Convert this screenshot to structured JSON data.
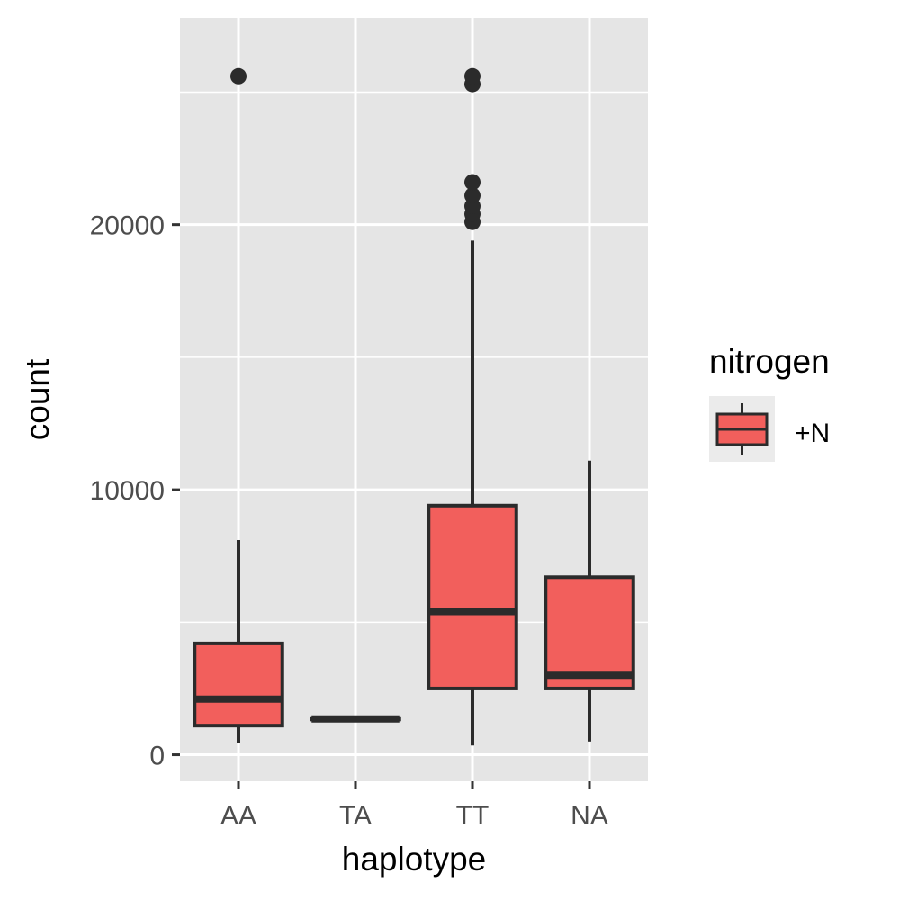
{
  "chart_data": {
    "type": "boxplot",
    "xlabel": "haplotype",
    "ylabel": "count",
    "categories": [
      "AA",
      "TA",
      "TT",
      "NA"
    ],
    "ylim": [
      -1000,
      27800
    ],
    "yticks": [
      0,
      10000,
      20000
    ],
    "ytick_labels": [
      "0",
      "10000",
      "20000"
    ],
    "y_minor_ticks": [
      5000,
      15000,
      25000
    ],
    "grid": true,
    "legend": {
      "title": "nitrogen",
      "position": "right",
      "entries": [
        {
          "label": "+N",
          "color": "#F25F5C"
        }
      ]
    },
    "series": [
      {
        "name": "+N",
        "color": "#F25F5C",
        "boxes": [
          {
            "category": "AA",
            "whisker_low": 450,
            "q1": 1100,
            "median": 2100,
            "q3": 4200,
            "whisker_high": 8100,
            "outliers": [
              25600
            ]
          },
          {
            "category": "TA",
            "whisker_low": 1350,
            "q1": 1350,
            "median": 1350,
            "q3": 1350,
            "whisker_high": 1350,
            "outliers": []
          },
          {
            "category": "TT",
            "whisker_low": 350,
            "q1": 2500,
            "median": 5400,
            "q3": 9400,
            "whisker_high": 19400,
            "outliers": [
              20100,
              20400,
              20700,
              21100,
              21600,
              25300,
              25600
            ]
          },
          {
            "category": "NA",
            "whisker_low": 500,
            "q1": 2500,
            "median": 3000,
            "q3": 6700,
            "whisker_high": 11100,
            "outliers": []
          }
        ]
      }
    ]
  },
  "colors": {
    "panel_bg": "#E5E5E5",
    "grid": "#FFFFFF",
    "box_fill": "#F25F5C",
    "line": "#2B2B2B"
  }
}
